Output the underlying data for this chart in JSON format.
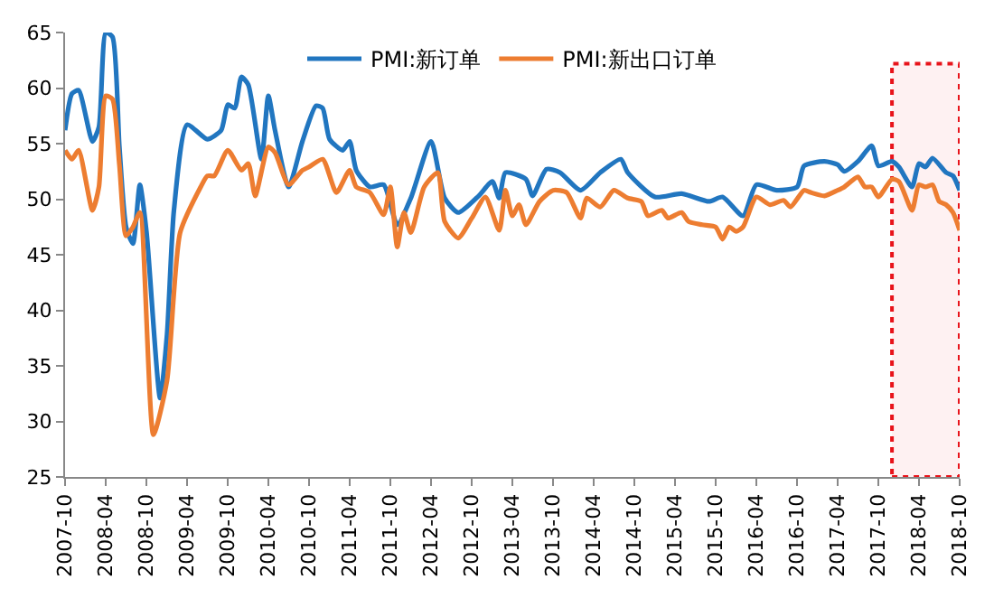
{
  "chart_data": {
    "type": "line",
    "series": [
      {
        "name": "PMI:新订单",
        "color": "#2176c0",
        "x": [
          "2007-10",
          "2007-11",
          "2007-12",
          "2008-02",
          "2008-03",
          "2008-04",
          "2008-05",
          "2008-06",
          "2008-07",
          "2008-08",
          "2008-09",
          "2008-10",
          "2008-12",
          "2009-01",
          "2009-02",
          "2009-04",
          "2009-07",
          "2009-09",
          "2009-10",
          "2009-11",
          "2009-12",
          "2010-01",
          "2010-03",
          "2010-04",
          "2010-05",
          "2010-07",
          "2010-09",
          "2010-11",
          "2010-12",
          "2011-01",
          "2011-03",
          "2011-04",
          "2011-05",
          "2011-07",
          "2011-09",
          "2011-11",
          "2012-01",
          "2012-04",
          "2012-06",
          "2012-08",
          "2012-11",
          "2013-01",
          "2013-02",
          "2013-03",
          "2013-06",
          "2013-07",
          "2013-09",
          "2013-11",
          "2014-02",
          "2014-05",
          "2014-08",
          "2014-09",
          "2015-01",
          "2015-05",
          "2015-09",
          "2015-11",
          "2016-02",
          "2016-04",
          "2016-07",
          "2016-10",
          "2016-11",
          "2017-02",
          "2017-04",
          "2017-05",
          "2017-07",
          "2017-09",
          "2017-10",
          "2017-12",
          "2018-01",
          "2018-03",
          "2018-04",
          "2018-05",
          "2018-06",
          "2018-08",
          "2018-09",
          "2018-10"
        ],
        "values": [
          56.2,
          59.5,
          59.8,
          55.2,
          56.5,
          65,
          64.6,
          54.7,
          47.5,
          46,
          51.3,
          47,
          32.1,
          37.8,
          49,
          56.7,
          55.4,
          56.2,
          58.5,
          58.2,
          61,
          60.3,
          53.6,
          59.3,
          56.2,
          51.1,
          55.2,
          58.4,
          58.2,
          55.4,
          54.4,
          55.2,
          52.6,
          51.1,
          51.3,
          47.7,
          50.1,
          55.2,
          50.1,
          48.8,
          50.3,
          51.6,
          50.1,
          52.4,
          51.8,
          50.3,
          52.7,
          52.4,
          50.8,
          52.4,
          53.6,
          52.4,
          50.2,
          50.5,
          49.8,
          50.2,
          48.5,
          51.3,
          50.8,
          51.1,
          53,
          53.4,
          53.1,
          52.5,
          53.4,
          54.8,
          53,
          53.4,
          52.9,
          51.1,
          53.2,
          52.9,
          53.7,
          52.4,
          52.1,
          50.8
        ]
      },
      {
        "name": "PMI:新出口订单",
        "color": "#ed7d31",
        "x": [
          "2007-10",
          "2007-11",
          "2007-12",
          "2008-02",
          "2008-03",
          "2008-04",
          "2008-05",
          "2008-06",
          "2008-07",
          "2008-08",
          "2008-09",
          "2008-11",
          "2009-01",
          "2009-03",
          "2009-06",
          "2009-07",
          "2009-08",
          "2009-10",
          "2009-12",
          "2010-01",
          "2010-02",
          "2010-04",
          "2010-05",
          "2010-07",
          "2010-09",
          "2010-10",
          "2010-12",
          "2011-02",
          "2011-04",
          "2011-05",
          "2011-07",
          "2011-09",
          "2011-10",
          "2011-11",
          "2011-12",
          "2012-01",
          "2012-03",
          "2012-05",
          "2012-06",
          "2012-08",
          "2012-10",
          "2012-12",
          "2013-02",
          "2013-03",
          "2013-04",
          "2013-05",
          "2013-06",
          "2013-08",
          "2013-10",
          "2013-12",
          "2014-02",
          "2014-03",
          "2014-05",
          "2014-07",
          "2014-09",
          "2014-11",
          "2014-12",
          "2015-02",
          "2015-03",
          "2015-05",
          "2015-06",
          "2015-08",
          "2015-10",
          "2015-11",
          "2015-12",
          "2016-01",
          "2016-02",
          "2016-04",
          "2016-06",
          "2016-08",
          "2016-09",
          "2016-11",
          "2016-12",
          "2017-02",
          "2017-04",
          "2017-05",
          "2017-07",
          "2017-08",
          "2017-09",
          "2017-10",
          "2017-12",
          "2018-01",
          "2018-03",
          "2018-04",
          "2018-05",
          "2018-06",
          "2018-07",
          "2018-08",
          "2018-09",
          "2018-10"
        ],
        "values": [
          54.4,
          53.6,
          54.4,
          49,
          51.1,
          59.3,
          59,
          53.1,
          46.7,
          47.5,
          48.8,
          28.8,
          33.7,
          47,
          51.1,
          52.1,
          52.1,
          54.4,
          52.6,
          53.2,
          50.3,
          54.7,
          54.2,
          51.3,
          52.6,
          52.9,
          53.6,
          50.6,
          52.6,
          51.1,
          50.6,
          48.6,
          51.1,
          45.7,
          48.8,
          47,
          51.1,
          52.4,
          48,
          46.5,
          48.3,
          50.2,
          47.2,
          50.8,
          48.5,
          49.5,
          47.7,
          49.8,
          50.8,
          50.6,
          48.3,
          50.1,
          49.3,
          50.8,
          50.1,
          49.8,
          48.5,
          49,
          48.3,
          48.8,
          48,
          47.7,
          47.5,
          46.4,
          47.5,
          47.1,
          47.5,
          50.2,
          49.5,
          49.9,
          49.3,
          50.8,
          50.6,
          50.3,
          50.8,
          51.1,
          52,
          51.1,
          51.1,
          50.2,
          51.8,
          51.6,
          49,
          51.3,
          51.1,
          51.3,
          49.8,
          49.5,
          48.8,
          47.2
        ]
      }
    ],
    "xlim": [
      "2007-10",
      "2018-10"
    ],
    "xticks": [
      "2007-10",
      "2008-04",
      "2008-10",
      "2009-04",
      "2009-10",
      "2010-04",
      "2010-10",
      "2011-04",
      "2011-10",
      "2012-04",
      "2012-10",
      "2013-04",
      "2013-10",
      "2014-04",
      "2014-10",
      "2015-04",
      "2015-10",
      "2016-04",
      "2016-10",
      "2017-04",
      "2017-10",
      "2018-04",
      "2018-10"
    ],
    "ylim": [
      25,
      65
    ],
    "yticks": [
      25,
      30,
      35,
      40,
      45,
      50,
      55,
      60,
      65
    ],
    "legend": "top",
    "line_style": "solid",
    "marker": "none",
    "bands": [
      {
        "axis": "x",
        "from": "2017-12",
        "to": "2018-10",
        "color": "#e8141b"
      }
    ]
  }
}
